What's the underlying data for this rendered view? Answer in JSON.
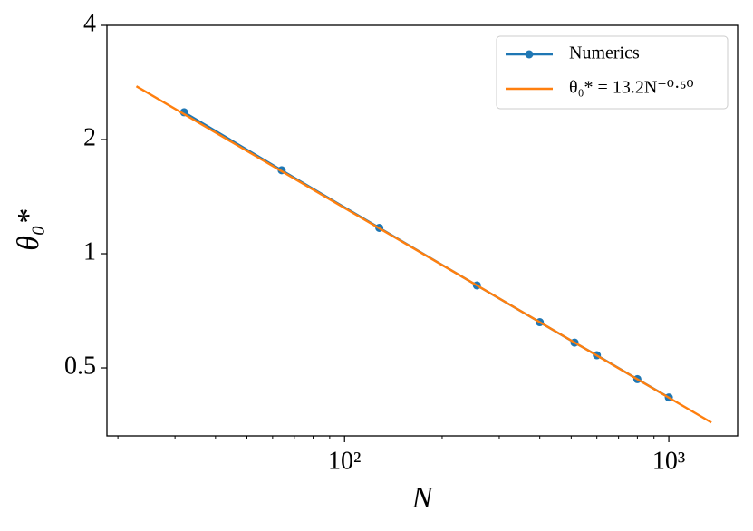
{
  "chart_data": {
    "type": "line",
    "x_label": "N",
    "y_label": "θ₀*",
    "xscale": "log",
    "yscale": "log",
    "xlim": [
      18.5,
      1630
    ],
    "ylim": [
      0.331,
      4
    ],
    "xticks": [
      {
        "value": 100,
        "label": "10²"
      },
      {
        "value": 1000,
        "label": "10³"
      }
    ],
    "xminorticks": [
      20,
      30,
      40,
      50,
      60,
      70,
      80,
      90,
      200,
      300,
      400,
      500,
      600,
      700,
      800,
      900
    ],
    "yticks": [
      0.5,
      1,
      2,
      4
    ],
    "legend": "upper right",
    "series": [
      {
        "name": "Numerics",
        "color": "#1f77b4",
        "marker": true,
        "x": [
          32,
          64,
          128,
          256,
          400,
          512,
          600,
          800,
          1000
        ],
        "values": [
          2.36,
          1.66,
          1.17,
          0.825,
          0.66,
          0.583,
          0.54,
          0.467,
          0.418
        ]
      },
      {
        "name": "θ₀* = 13.2N⁻⁰·⁵⁰",
        "color": "#ff7f0e",
        "marker": false,
        "x": [
          22.8,
          1353
        ],
        "values": [
          2.764,
          0.359
        ]
      }
    ]
  }
}
